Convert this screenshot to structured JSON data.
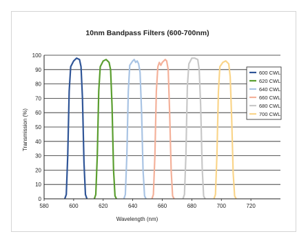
{
  "chart_data": {
    "type": "line",
    "title": "10nm Bandpass Filters (600-700nm)",
    "xlabel": "Wavelength (nm)",
    "ylabel": "Transmission (%)",
    "xlim": [
      580,
      740
    ],
    "ylim": [
      0,
      100
    ],
    "x_ticks": [
      580,
      600,
      620,
      640,
      660,
      680,
      700,
      720
    ],
    "y_ticks": [
      0,
      10,
      20,
      30,
      40,
      50,
      60,
      70,
      80,
      90,
      100
    ],
    "grid": "horizontal",
    "legend_position": "right",
    "series": [
      {
        "name": "600 CWL",
        "color": "#2f5597",
        "points": [
          [
            594,
            0
          ],
          [
            595,
            3
          ],
          [
            596,
            30
          ],
          [
            597,
            75
          ],
          [
            598,
            92
          ],
          [
            600,
            96
          ],
          [
            602,
            98
          ],
          [
            604,
            97
          ],
          [
            605,
            92
          ],
          [
            606,
            70
          ],
          [
            607,
            25
          ],
          [
            608,
            3
          ],
          [
            609,
            0
          ]
        ]
      },
      {
        "name": "620 CWL",
        "color": "#5a9e2f",
        "points": [
          [
            614,
            0
          ],
          [
            615,
            3
          ],
          [
            616,
            30
          ],
          [
            617,
            75
          ],
          [
            618,
            92
          ],
          [
            620,
            96
          ],
          [
            622,
            97
          ],
          [
            624,
            95
          ],
          [
            625,
            90
          ],
          [
            626,
            65
          ],
          [
            627,
            20
          ],
          [
            628,
            2
          ],
          [
            629,
            0
          ]
        ]
      },
      {
        "name": "640 CWL",
        "color": "#a9c4e4",
        "points": [
          [
            634,
            0
          ],
          [
            635,
            3
          ],
          [
            636,
            30
          ],
          [
            637,
            75
          ],
          [
            638,
            93
          ],
          [
            640,
            96
          ],
          [
            641,
            97
          ],
          [
            642,
            95
          ],
          [
            643,
            96
          ],
          [
            644,
            94
          ],
          [
            645,
            88
          ],
          [
            646,
            60
          ],
          [
            647,
            20
          ],
          [
            648,
            2
          ],
          [
            649,
            0
          ]
        ]
      },
      {
        "name": "660 CWL",
        "color": "#f4b19a",
        "points": [
          [
            653,
            0
          ],
          [
            654,
            3
          ],
          [
            655,
            30
          ],
          [
            656,
            75
          ],
          [
            657,
            92
          ],
          [
            658,
            95
          ],
          [
            659,
            93
          ],
          [
            660,
            95
          ],
          [
            662,
            97
          ],
          [
            663,
            96
          ],
          [
            664,
            90
          ],
          [
            665,
            60
          ],
          [
            666,
            20
          ],
          [
            667,
            2
          ],
          [
            668,
            0
          ]
        ]
      },
      {
        "name": "680 CWL",
        "color": "#c8c8c8",
        "points": [
          [
            674,
            0
          ],
          [
            675,
            3
          ],
          [
            676,
            30
          ],
          [
            677,
            78
          ],
          [
            678,
            94
          ],
          [
            680,
            98
          ],
          [
            682,
            98
          ],
          [
            684,
            97
          ],
          [
            685,
            90
          ],
          [
            686,
            65
          ],
          [
            687,
            22
          ],
          [
            688,
            2
          ],
          [
            689,
            0
          ]
        ]
      },
      {
        "name": "700 CWL",
        "color": "#fad58a",
        "points": [
          [
            695,
            0
          ],
          [
            696,
            3
          ],
          [
            697,
            30
          ],
          [
            698,
            75
          ],
          [
            699,
            92
          ],
          [
            701,
            95
          ],
          [
            703,
            96
          ],
          [
            705,
            94
          ],
          [
            706,
            85
          ],
          [
            707,
            55
          ],
          [
            708,
            18
          ],
          [
            709,
            2
          ],
          [
            710,
            0
          ]
        ]
      }
    ]
  }
}
